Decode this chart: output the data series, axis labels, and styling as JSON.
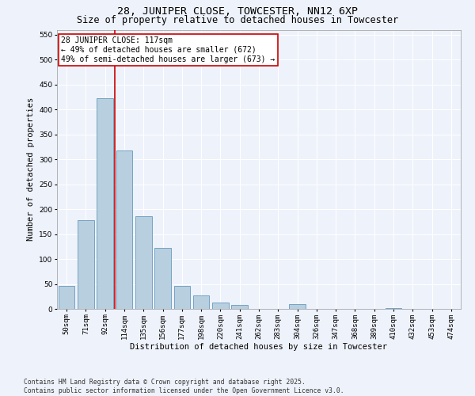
{
  "title": "28, JUNIPER CLOSE, TOWCESTER, NN12 6XP",
  "subtitle": "Size of property relative to detached houses in Towcester",
  "xlabel": "Distribution of detached houses by size in Towcester",
  "ylabel": "Number of detached properties",
  "categories": [
    "50sqm",
    "71sqm",
    "92sqm",
    "114sqm",
    "135sqm",
    "156sqm",
    "177sqm",
    "198sqm",
    "220sqm",
    "241sqm",
    "262sqm",
    "283sqm",
    "304sqm",
    "326sqm",
    "347sqm",
    "368sqm",
    "389sqm",
    "410sqm",
    "432sqm",
    "453sqm",
    "474sqm"
  ],
  "values": [
    46,
    178,
    422,
    318,
    186,
    122,
    46,
    27,
    12,
    8,
    0,
    0,
    9,
    0,
    0,
    0,
    0,
    1,
    0,
    0,
    0
  ],
  "bar_color": "#b8cfe0",
  "bar_edge_color": "#6699bb",
  "vline_x": 2.5,
  "vline_color": "#cc0000",
  "annotation_text": "28 JUNIPER CLOSE: 117sqm\n← 49% of detached houses are smaller (672)\n49% of semi-detached houses are larger (673) →",
  "annotation_box_facecolor": "#ffffff",
  "annotation_box_edgecolor": "#cc0000",
  "ylim": [
    0,
    560
  ],
  "yticks": [
    0,
    50,
    100,
    150,
    200,
    250,
    300,
    350,
    400,
    450,
    500,
    550
  ],
  "background_color": "#eef2fb",
  "grid_color": "#ffffff",
  "footer_text": "Contains HM Land Registry data © Crown copyright and database right 2025.\nContains public sector information licensed under the Open Government Licence v3.0.",
  "title_fontsize": 9.5,
  "subtitle_fontsize": 8.5,
  "axis_label_fontsize": 7.5,
  "tick_fontsize": 6.5,
  "annotation_fontsize": 7,
  "footer_fontsize": 5.8
}
